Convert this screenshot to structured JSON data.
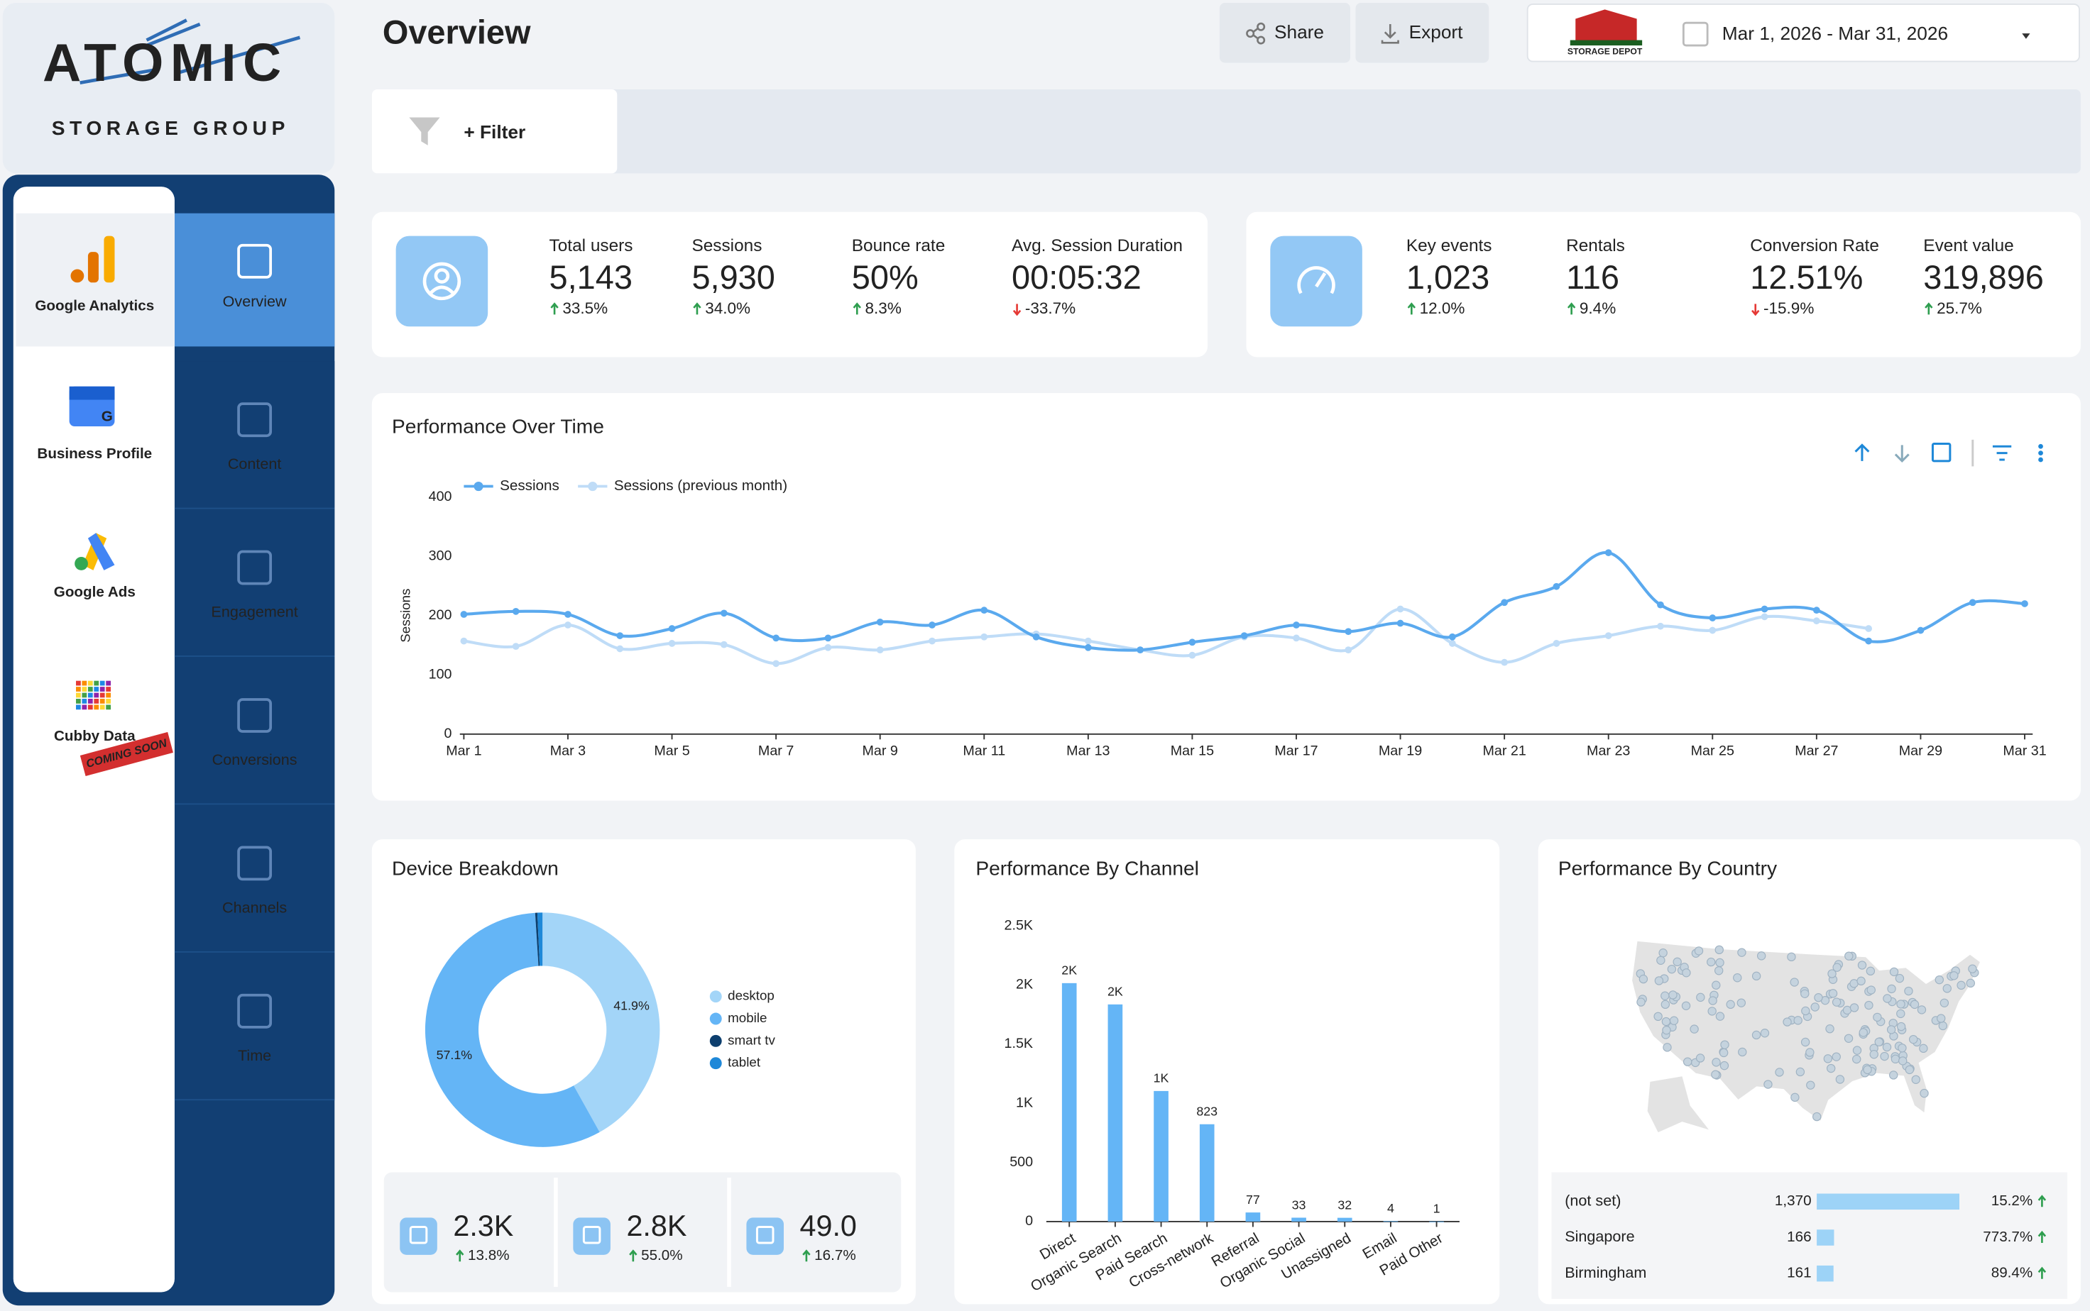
{
  "sidebar": {
    "brand": "ATOMIC",
    "brand_sub": "STORAGE GROUP",
    "sources": [
      "Google Analytics",
      "Business Profile",
      "Google Ads",
      "Cubby Data"
    ],
    "badge": "COMING SOON",
    "nav": [
      "Overview",
      "Content",
      "Engagement",
      "Conversions",
      "Channels",
      "Time"
    ]
  },
  "header": {
    "title": "Overview",
    "share": "Share",
    "export": "Export",
    "client": "STORAGE DEPOT",
    "date_range": "Mar 1, 2026 - Mar 31, 2026",
    "filter": "+ Filter"
  },
  "kpis": [
    [
      {
        "label": "Total users",
        "value": "5,143",
        "change": "33.5%"
      },
      {
        "label": "Sessions",
        "value": "5,930",
        "change": "34.0%"
      },
      {
        "label": "Bounce rate",
        "value": "50%",
        "change": "8.3%"
      },
      {
        "label": "Avg. Session Duration",
        "value": "00:05:32",
        "change": "-33.7%"
      }
    ],
    [
      {
        "label": "Key events",
        "value": "1,023",
        "change": "12.0%"
      },
      {
        "label": "Rentals",
        "value": "116",
        "change": "9.4%"
      },
      {
        "label": "Conversion Rate",
        "value": "12.51%",
        "change": "-15.9%"
      },
      {
        "label": "Event value",
        "value": "319,896",
        "change": "25.7%"
      }
    ]
  ],
  "chart_data": [
    {
      "type": "line",
      "title": "Performance Over Time",
      "y_label": "Sessions",
      "categories": [
        "Mar 1",
        null,
        "Mar 3",
        null,
        "Mar 5",
        null,
        "Mar 7",
        null,
        "Mar 9",
        null,
        "Mar 11",
        null,
        "Mar 13",
        null,
        "Mar 15",
        null,
        "Mar 17",
        null,
        "Mar 19",
        null,
        "Mar 21",
        null,
        "Mar 23",
        null,
        "Mar 25",
        null,
        "Mar 27",
        null,
        "Mar 29",
        null,
        "Mar 31"
      ],
      "series": [
        {
          "name": "Sessions",
          "color": "#5aa9ee",
          "values": [
            202,
            207,
            202,
            166,
            178,
            204,
            162,
            162,
            189,
            184,
            209,
            164,
            146,
            142,
            155,
            166,
            184,
            173,
            187,
            164,
            222,
            249,
            306,
            218,
            196,
            211,
            209,
            157,
            175,
            222,
            220
          ]
        },
        {
          "name": "Sessions (previous month)",
          "color": "#bfdcf7",
          "values": [
            157,
            148,
            184,
            144,
            153,
            151,
            119,
            146,
            142,
            157,
            164,
            169,
            157,
            142,
            133,
            164,
            162,
            142,
            211,
            153,
            121,
            153,
            166,
            182,
            175,
            198,
            191,
            178,
            null,
            null,
            null
          ]
        }
      ],
      "ylim": [
        0,
        400
      ],
      "yticks": [
        0,
        100,
        200,
        300,
        400
      ],
      "legend": "top-left"
    },
    {
      "type": "pie",
      "title": "Device Breakdown",
      "donut": true,
      "categories": [
        "desktop",
        "mobile",
        "smart tv",
        "tablet"
      ],
      "values": [
        41.9,
        57.1,
        0.3,
        0.7
      ],
      "value_labels": [
        "41.9%",
        "57.1%",
        null,
        null
      ],
      "colors": [
        "#a3d5f8",
        "#64b5f6",
        "#0d3f6e",
        "#1e88d8"
      ]
    },
    {
      "type": "bar",
      "title": "Performance By Channel",
      "categories": [
        "Direct",
        "Organic Search",
        "Paid Search",
        "Cross-network",
        "Referral",
        "Organic Social",
        "Unassigned",
        "Email",
        "Paid Other"
      ],
      "values": [
        2016,
        1836,
        1104,
        823,
        77,
        33,
        32,
        4,
        1
      ],
      "value_labels": [
        "2K",
        "2K",
        "1K",
        "823",
        "77",
        "33",
        "32",
        "4",
        "1"
      ],
      "color": "#64b5f6",
      "ylim": [
        0,
        2500
      ],
      "yticks": [
        0,
        500,
        {
          "value": 1000,
          "label": "1K"
        },
        {
          "value": 1500,
          "label": "1.5K"
        },
        {
          "value": 2000,
          "label": "2K"
        },
        {
          "value": 2500,
          "label": "2.5K"
        }
      ]
    }
  ],
  "device_stats": [
    {
      "value": "2.3K",
      "change": "13.8%"
    },
    {
      "value": "2.8K",
      "change": "55.0%"
    },
    {
      "value": "49.0",
      "change": "16.7%"
    }
  ],
  "country": {
    "title": "Performance By Country",
    "rows": [
      {
        "name": "(not set)",
        "value": 1370,
        "value_label": "1,370",
        "change": "15.2%"
      },
      {
        "name": "Singapore",
        "value": 166,
        "value_label": "166",
        "change": "773.7%"
      },
      {
        "name": "Birmingham",
        "value": 161,
        "value_label": "161",
        "change": "89.4%"
      }
    ]
  }
}
